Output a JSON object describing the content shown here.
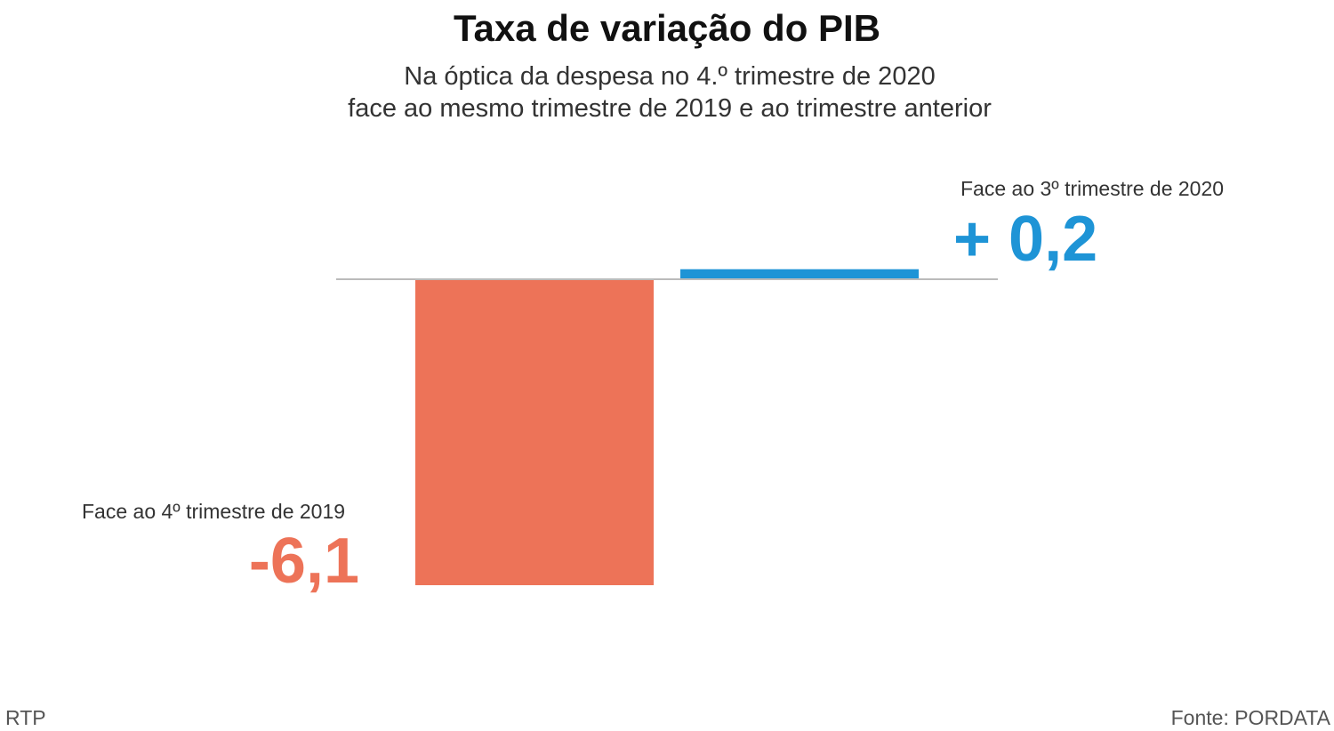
{
  "chart_data": {
    "type": "bar",
    "title": "Taxa de variação do PIB",
    "subtitle": [
      "Na óptica da despesa no 4.º trimestre de 2020",
      "face ao mesmo trimestre de 2019 e ao trimestre anterior"
    ],
    "categories": [
      "Face ao 4º trimestre de 2019",
      "Face ao 3º trimestre de 2020"
    ],
    "values": [
      -6.1,
      0.2
    ],
    "value_labels": [
      "-6,1",
      "+ 0,2"
    ],
    "colors": [
      "#ED7358",
      "#1E94D6"
    ],
    "xlabel": "",
    "ylabel": "",
    "grid": false
  },
  "footer": {
    "left": "RTP",
    "right": "Fonte: PORDATA"
  }
}
